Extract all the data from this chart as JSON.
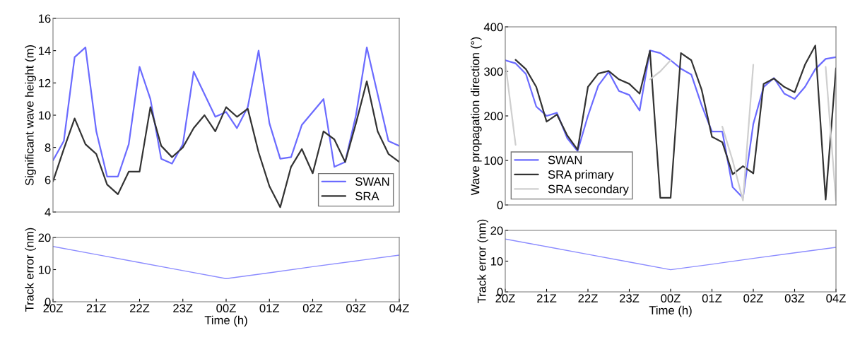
{
  "chart_data": [
    {
      "type": "line",
      "ylabel": "Significant wave height (m)",
      "categories": [
        null,
        null,
        null,
        null,
        null,
        null,
        null,
        null,
        null,
        null,
        null,
        null,
        null,
        null,
        null,
        null,
        null,
        null,
        null,
        null,
        null,
        null,
        null,
        null,
        null,
        null,
        null,
        null,
        null,
        null,
        null,
        null,
        null
      ],
      "series": [
        {
          "name": "SWAN",
          "color": "#6b6bff",
          "values": [
            7.2,
            8.4,
            13.6,
            14.2,
            9.0,
            6.2,
            6.2,
            8.2,
            13.0,
            11.0,
            7.3,
            7.0,
            8.2,
            12.7,
            11.3,
            9.9,
            10.2,
            9.2,
            10.5,
            14.0,
            9.5,
            7.3,
            7.4,
            9.4,
            10.2,
            11.0,
            6.8,
            7.1,
            10.0,
            14.2,
            11.3,
            8.4,
            8.1
          ]
        },
        {
          "name": "SRA",
          "color": "#333333",
          "values": [
            5.9,
            7.9,
            9.8,
            8.2,
            7.6,
            5.7,
            5.1,
            6.5,
            6.5,
            10.5,
            8.1,
            7.4,
            8.0,
            9.2,
            10.0,
            9.0,
            10.5,
            9.9,
            10.4,
            7.7,
            5.6,
            4.3,
            6.8,
            7.9,
            6.4,
            9.0,
            8.5,
            7.1,
            9.5,
            12.1,
            9.0,
            7.6,
            7.1
          ]
        }
      ],
      "ylim": [
        4,
        16
      ],
      "yticks": [
        4,
        6,
        8,
        10,
        12,
        14,
        16
      ],
      "tick_labels": "y",
      "legend": "bottom right"
    },
    {
      "type": "line",
      "xlabel": "Time (h)",
      "ylabel": "Track error (nm)",
      "categories": [
        "20Z",
        "21Z",
        "22Z",
        "23Z",
        "00Z",
        "01Z",
        "02Z",
        "03Z",
        "04Z"
      ],
      "series": [
        {
          "color": "#8c8cff",
          "values": [
            17.2,
            14.7,
            12.2,
            9.7,
            7.2,
            9.0,
            10.9,
            12.7,
            14.5
          ]
        }
      ],
      "ylim": [
        0,
        20
      ],
      "yticks": [
        0,
        10,
        20
      ]
    },
    {
      "type": "line",
      "ylabel": "Wave propagation direction (°)",
      "categories": [
        null,
        null,
        null,
        null,
        null,
        null,
        null,
        null,
        null,
        null,
        null,
        null,
        null,
        null,
        null,
        null,
        null,
        null,
        null,
        null,
        null,
        null,
        null,
        null,
        null,
        null,
        null,
        null,
        null,
        null,
        null,
        null,
        null
      ],
      "series": [
        {
          "name": "SWAN",
          "color": "#6b6bff",
          "values": [
            325,
            318,
            294,
            221,
            200,
            207,
            150,
            121,
            200,
            268,
            299,
            256,
            247,
            212,
            347,
            341,
            325,
            306,
            293,
            224,
            165,
            165,
            40,
            16,
            182,
            265,
            285,
            250,
            238,
            265,
            305,
            328,
            332
          ]
        },
        {
          "name": "SRA primary",
          "color": "#333333",
          "values": [
            null,
            326,
            305,
            265,
            187,
            203,
            156,
            124,
            265,
            295,
            301,
            282,
            272,
            250,
            346,
            16,
            16,
            341,
            325,
            259,
            153,
            141,
            69,
            87,
            71,
            272,
            284,
            265,
            253,
            315,
            358,
            12,
            307
          ]
        },
        {
          "name": "SRA secondary",
          "color": "#cfcfcf",
          "values": [
            320,
            135,
            null,
            null,
            null,
            null,
            null,
            null,
            null,
            null,
            null,
            null,
            null,
            null,
            282,
            300,
            325,
            null,
            null,
            null,
            null,
            176,
            100,
            10,
            315,
            null,
            null,
            null,
            null,
            null,
            null,
            310,
            10
          ]
        }
      ],
      "ylim": [
        0,
        400
      ],
      "yticks": [
        0,
        100,
        200,
        300,
        400
      ],
      "tick_labels": "y",
      "legend": "bottom left"
    },
    {
      "type": "line",
      "xlabel": "Time (h)",
      "ylabel": "Track error (nm)",
      "categories": [
        "20Z",
        "21Z",
        "22Z",
        "23Z",
        "00Z",
        "01Z",
        "02Z",
        "03Z",
        "04Z"
      ],
      "series": [
        {
          "color": "#8c8cff",
          "values": [
            17.2,
            14.7,
            12.2,
            9.7,
            7.2,
            9.0,
            10.9,
            12.7,
            14.5
          ]
        }
      ],
      "ylim": [
        0,
        20
      ],
      "yticks": [
        0,
        10,
        20
      ]
    }
  ]
}
